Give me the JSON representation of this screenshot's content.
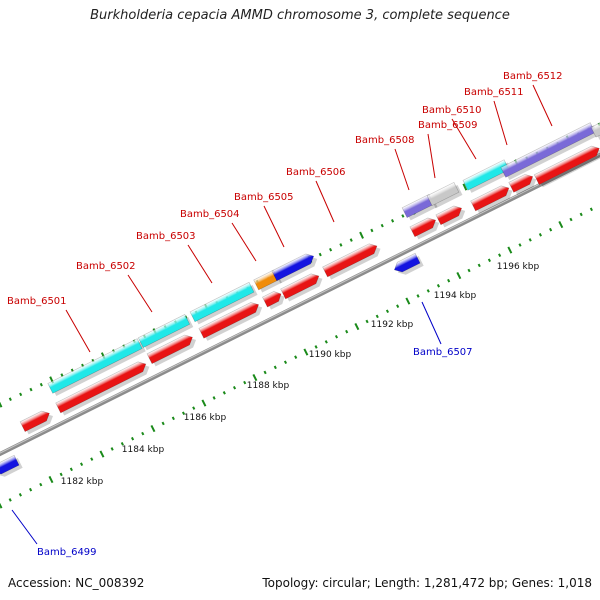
{
  "title": "Burkholderia cepacia AMMD chromosome 3, complete sequence",
  "footer": {
    "accession": "Accession: NC_008392",
    "summary": "Topology: circular; Length: 1,281,472 bp; Genes: 1,018"
  },
  "colors": {
    "red_gene": "#e81414",
    "cyan_gene": "#20e8e8",
    "blue_gene": "#1414e0",
    "purple_gene": "#7a6ad8",
    "gray_gene": "#c8c8c8",
    "orange_gene": "#f08c0a",
    "top_label": "#c80000",
    "bottom_label": "#0000c8",
    "tick_green": "#1a8a1a",
    "backbone": "#8c8c8c"
  },
  "ticks": [
    {
      "label": "1182 kbp"
    },
    {
      "label": "1184 kbp"
    },
    {
      "label": "1186 kbp"
    },
    {
      "label": "1188 kbp"
    },
    {
      "label": "1190 kbp"
    },
    {
      "label": "1192 kbp"
    },
    {
      "label": "1194 kbp"
    },
    {
      "label": "1196 kbp"
    }
  ],
  "top_labels": [
    {
      "text": "Bamb_6501"
    },
    {
      "text": "Bamb_6502"
    },
    {
      "text": "Bamb_6503"
    },
    {
      "text": "Bamb_6504"
    },
    {
      "text": "Bamb_6505"
    },
    {
      "text": "Bamb_6506"
    },
    {
      "text": "Bamb_6508"
    },
    {
      "text": "Bamb_6509"
    },
    {
      "text": "Bamb_6510"
    },
    {
      "text": "Bamb_6511"
    },
    {
      "text": "Bamb_6512"
    }
  ],
  "bottom_labels": [
    {
      "text": "Bamb_6507"
    },
    {
      "text": "Bamb_6499"
    }
  ]
}
